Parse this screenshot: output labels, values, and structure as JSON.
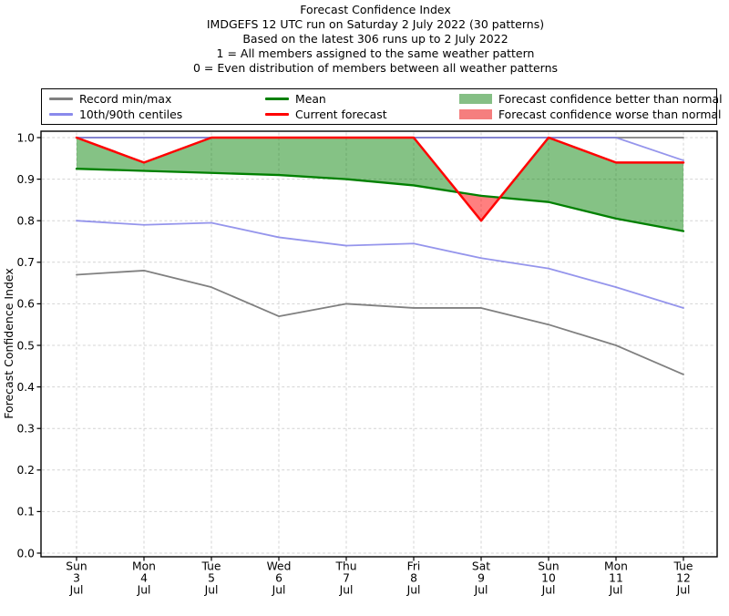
{
  "title": {
    "line1": "Forecast Confidence Index",
    "line2": "IMDGEFS 12 UTC run on Saturday 2 July 2022 (30 patterns)",
    "line3": "Based on the latest 306 runs up to 2 July 2022",
    "line4": "1 = All members assigned to the same weather pattern",
    "line5": "0 = Even distribution of members between all weather patterns"
  },
  "legend": {
    "entries": [
      {
        "label": "Record min/max",
        "type": "line",
        "color": "#808080"
      },
      {
        "label": "10th/90th centiles",
        "type": "line",
        "color": "#8a8aec"
      },
      {
        "label": "Mean",
        "type": "line",
        "color": "#008000"
      },
      {
        "label": "Current forecast",
        "type": "line",
        "color": "#ff0000"
      },
      {
        "label": "Forecast confidence better than normal",
        "type": "patch",
        "color": "#85bf85"
      },
      {
        "label": "Forecast confidence worse than normal",
        "type": "patch",
        "color": "#f57e7e"
      }
    ]
  },
  "chart_data": {
    "type": "line",
    "title": "Forecast Confidence Index",
    "ylabel": "Forecast Confidence Index",
    "ylim": [
      0.0,
      1.0
    ],
    "yticks": [
      "0.0",
      "0.1",
      "0.2",
      "0.3",
      "0.4",
      "0.5",
      "0.6",
      "0.7",
      "0.8",
      "0.9",
      "1.0"
    ],
    "x_labels": [
      {
        "day": "Sun",
        "date": "3",
        "month": "Jul"
      },
      {
        "day": "Mon",
        "date": "4",
        "month": "Jul"
      },
      {
        "day": "Tue",
        "date": "5",
        "month": "Jul"
      },
      {
        "day": "Wed",
        "date": "6",
        "month": "Jul"
      },
      {
        "day": "Thu",
        "date": "7",
        "month": "Jul"
      },
      {
        "day": "Fri",
        "date": "8",
        "month": "Jul"
      },
      {
        "day": "Sat",
        "date": "9",
        "month": "Jul"
      },
      {
        "day": "Sun",
        "date": "10",
        "month": "Jul"
      },
      {
        "day": "Mon",
        "date": "11",
        "month": "Jul"
      },
      {
        "day": "Tue",
        "date": "12",
        "month": "Jul"
      }
    ],
    "grid": true,
    "legend_position": "top",
    "series": [
      {
        "name": "Record max",
        "color": "#808080",
        "values": [
          1.0,
          1.0,
          1.0,
          1.0,
          1.0,
          1.0,
          1.0,
          1.0,
          1.0,
          1.0
        ]
      },
      {
        "name": "Record min",
        "color": "#808080",
        "values": [
          0.67,
          0.68,
          0.64,
          0.57,
          0.6,
          0.59,
          0.59,
          0.55,
          0.5,
          0.43
        ]
      },
      {
        "name": "90th centile",
        "color": "#7e7ee8",
        "values": [
          1.0,
          1.0,
          1.0,
          1.0,
          1.0,
          1.0,
          1.0,
          1.0,
          1.0,
          0.945
        ]
      },
      {
        "name": "10th centile",
        "color": "#7e7ee8",
        "values": [
          0.8,
          0.79,
          0.795,
          0.76,
          0.74,
          0.745,
          0.71,
          0.685,
          0.64,
          0.59
        ]
      },
      {
        "name": "Mean",
        "color": "#008000",
        "values": [
          0.925,
          0.92,
          0.915,
          0.91,
          0.9,
          0.885,
          0.86,
          0.845,
          0.805,
          0.775
        ]
      },
      {
        "name": "Current forecast",
        "color": "#ff0000",
        "values": [
          1.0,
          0.94,
          1.0,
          1.0,
          1.0,
          1.0,
          0.8,
          1.0,
          0.94,
          0.94
        ]
      }
    ],
    "fills": {
      "between": [
        "Current forecast",
        "Mean"
      ],
      "better_color": "rgba(0,128,0,0.48)",
      "worse_color": "rgba(255,0,0,0.5)"
    }
  }
}
